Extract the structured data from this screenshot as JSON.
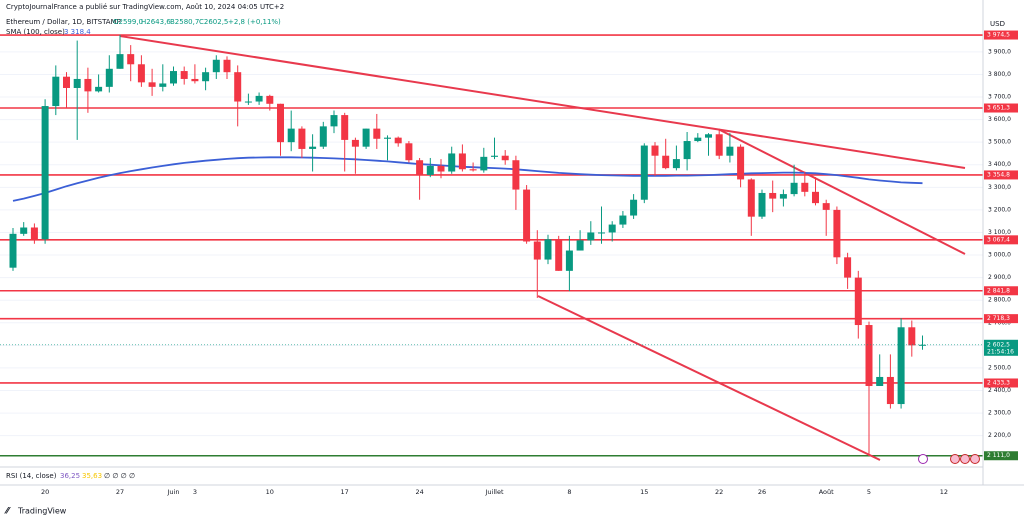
{
  "header": {
    "publisher": "CryptoJournalFrance a publié sur TradingView.com, Août 10, 2024 04:05 UTC+2",
    "symbol": "Ethereum / Dollar, 1D, BITSTAMP",
    "ohlc": [
      "O2599,0",
      "H2643,6",
      "B2580,7",
      "C2602,5",
      "+2,8 (+0,11%)"
    ],
    "currency": "USD",
    "rsi": {
      "name": "RSI (14, close)",
      "values": [
        "36,25",
        "35,63"
      ],
      "extra": "∅ ∅ ∅ ∅"
    },
    "brand": "TradingView"
  },
  "chart_data": {
    "type": "candlestick",
    "categories": [
      null,
      null,
      null,
      "20",
      null,
      null,
      null,
      null,
      null,
      null,
      "27",
      null,
      null,
      null,
      null,
      "Juin",
      null,
      "3",
      null,
      null,
      null,
      null,
      null,
      null,
      "10",
      null,
      null,
      null,
      null,
      null,
      null,
      "17",
      null,
      null,
      null,
      null,
      null,
      null,
      "24",
      null,
      null,
      null,
      null,
      null,
      null,
      "Juillet",
      null,
      null,
      null,
      null,
      null,
      null,
      "8",
      null,
      null,
      null,
      null,
      null,
      null,
      "15",
      null,
      null,
      null,
      null,
      null,
      null,
      "22",
      null,
      null,
      null,
      "26",
      null,
      null,
      null,
      null,
      null,
      "Août",
      null,
      null,
      null,
      "5",
      null,
      null,
      null,
      null,
      null,
      null,
      "12"
    ],
    "open": [
      2944,
      3094,
      3122,
      3070,
      3660,
      3790,
      3740,
      3780,
      3725,
      3745,
      3825,
      3890,
      3845,
      3765,
      3745,
      3760,
      3815,
      3780,
      3770,
      3810,
      3865,
      3810,
      3680,
      3680,
      3705,
      3670,
      3500,
      3560,
      3470,
      3480,
      3570,
      3620,
      3510,
      3480,
      3560,
      3515,
      3520,
      3495,
      3420,
      3355,
      3395,
      3370,
      3450,
      3380,
      3375,
      3435,
      3440,
      3420,
      3290,
      3060,
      2980,
      3070,
      2930,
      3020,
      3065,
      3100,
      3100,
      3135,
      3175,
      3245,
      3485,
      3440,
      3385,
      3425,
      3505,
      3520,
      3535,
      3440,
      3480,
      3335,
      3170,
      3275,
      3250,
      3270,
      3320,
      3280,
      3230,
      3200,
      2990,
      2900,
      2690,
      2420,
      2460,
      2340,
      2680,
      2599,
      null,
      null
    ],
    "high": [
      3120,
      3146,
      3140,
      3690,
      3840,
      3810,
      3950,
      3830,
      3800,
      3885,
      3975,
      3930,
      3885,
      3825,
      3845,
      3835,
      3835,
      3845,
      3830,
      3885,
      3880,
      3840,
      3715,
      3720,
      3710,
      3670,
      3640,
      3570,
      3535,
      3590,
      3640,
      3630,
      3520,
      3560,
      3625,
      3530,
      3525,
      3505,
      3430,
      3430,
      3425,
      3480,
      3490,
      3410,
      3475,
      3520,
      3465,
      3440,
      3310,
      3110,
      3090,
      3085,
      3085,
      3110,
      3150,
      3215,
      3150,
      3195,
      3270,
      3495,
      3500,
      3515,
      3485,
      3545,
      3540,
      3540,
      3560,
      3540,
      3490,
      3340,
      3290,
      3330,
      3290,
      3400,
      3370,
      3345,
      3245,
      3215,
      3010,
      2930,
      2705,
      2560,
      2560,
      2720,
      2710,
      2643.6,
      null,
      null
    ],
    "low": [
      2930,
      3085,
      3050,
      3050,
      3620,
      3650,
      3510,
      3630,
      3720,
      3720,
      3825,
      3770,
      3745,
      3705,
      3725,
      3750,
      3755,
      3760,
      3730,
      3780,
      3780,
      3570,
      3665,
      3665,
      3640,
      3440,
      3460,
      3430,
      3370,
      3470,
      3540,
      3370,
      3360,
      3470,
      3470,
      3420,
      3480,
      3410,
      3245,
      3345,
      3340,
      3360,
      3370,
      3370,
      3365,
      3425,
      3400,
      3200,
      3050,
      2810,
      2960,
      2930,
      2840,
      3020,
      3045,
      3050,
      3060,
      3120,
      3160,
      3230,
      3350,
      3380,
      3375,
      3375,
      3500,
      3440,
      3425,
      3410,
      3300,
      3085,
      3160,
      3190,
      3215,
      3260,
      3260,
      3220,
      3085,
      2960,
      2850,
      2630,
      2110,
      2420,
      2320,
      2320,
      2550,
      2580.7,
      null,
      null
    ],
    "close": [
      3094,
      3122,
      3070,
      3660,
      3790,
      3740,
      3780,
      3725,
      3745,
      3825,
      3890,
      3845,
      3765,
      3745,
      3760,
      3815,
      3780,
      3770,
      3810,
      3865,
      3810,
      3680,
      3680,
      3705,
      3670,
      3500,
      3560,
      3470,
      3480,
      3570,
      3620,
      3510,
      3480,
      3560,
      3515,
      3520,
      3495,
      3420,
      3355,
      3395,
      3370,
      3450,
      3380,
      3375,
      3435,
      3440,
      3420,
      3290,
      3060,
      2980,
      3070,
      2930,
      3020,
      3065,
      3100,
      3100,
      3135,
      3175,
      3245,
      3485,
      3440,
      3385,
      3425,
      3505,
      3520,
      3535,
      3440,
      3480,
      3335,
      3170,
      3275,
      3250,
      3270,
      3320,
      3280,
      3230,
      3200,
      2990,
      2900,
      2690,
      2420,
      2460,
      2340,
      2680,
      2600,
      2602.5,
      null,
      null
    ],
    "up_color": "#089981",
    "down_color": "#f23645",
    "sma": {
      "name": "SMA (100, close)",
      "color": "#3b5fd6",
      "last_label": "3 318,4",
      "values": [
        3240,
        3250,
        3262,
        3275,
        3290,
        3305,
        3318,
        3330,
        3342,
        3353,
        3363,
        3372,
        3380,
        3388,
        3395,
        3402,
        3408,
        3413,
        3418,
        3422,
        3426,
        3429,
        3431,
        3432,
        3433,
        3433,
        3433,
        3432,
        3431,
        3430,
        3428,
        3426,
        3424,
        3421,
        3418,
        3415,
        3411,
        3407,
        3403,
        3400,
        3397,
        3394,
        3391,
        3389,
        3387,
        3385,
        3383,
        3380,
        3376,
        3372,
        3368,
        3364,
        3361,
        3358,
        3356,
        3354,
        3353,
        3352,
        3351,
        3351,
        3351,
        3351,
        3352,
        3352,
        3353,
        3354,
        3356,
        3358,
        3360,
        3362,
        3363,
        3364,
        3365,
        3365,
        3364,
        3362,
        3358,
        3354,
        3348,
        3342,
        3335,
        3330,
        3326,
        3322,
        3320,
        3318.4,
        null,
        null
      ]
    },
    "levels": [
      {
        "value": 3974.5,
        "label": "3 974,5",
        "color": "#f23645"
      },
      {
        "value": 3651.3,
        "label": "3 651,3",
        "color": "#f23645"
      },
      {
        "value": 3354.8,
        "label": "3 354,8",
        "color": "#f23645"
      },
      {
        "value": 3067.4,
        "label": "3 067,4",
        "color": "#f23645"
      },
      {
        "value": 2841.8,
        "label": "2 841,8",
        "color": "#f23645"
      },
      {
        "value": 2718.3,
        "label": "2 718,3",
        "color": "#f23645"
      },
      {
        "value": 2433.3,
        "label": "2 433,3",
        "color": "#f23645"
      },
      {
        "value": 2111.0,
        "label": "2 111,0",
        "color": "#2e7d32"
      }
    ],
    "last": {
      "value": 2602.5,
      "label": "2 602,5",
      "countdown": "21:54:16",
      "color": "#089981"
    },
    "ylim": [
      2070,
      4050
    ],
    "yticks": [
      {
        "value": 2200,
        "label": "2 200,0"
      },
      {
        "value": 2300,
        "label": "2 300,0"
      },
      {
        "value": 2400,
        "label": "2 400,0"
      },
      {
        "value": 2500,
        "label": "2 500,0"
      },
      {
        "value": 2600,
        "label": "2 600,0"
      },
      {
        "value": 2700,
        "label": "2 700,0"
      },
      {
        "value": 2800,
        "label": "2 800,0"
      },
      {
        "value": 2900,
        "label": "2 900,0"
      },
      {
        "value": 3000,
        "label": "3 000,0"
      },
      {
        "value": 3100,
        "label": "3 100,0"
      },
      {
        "value": 3200,
        "label": "3 200,0"
      },
      {
        "value": 3300,
        "label": "3 300,0"
      },
      {
        "value": 3400,
        "label": "3 400,0"
      },
      {
        "value": 3500,
        "label": "3 500,0"
      },
      {
        "value": 3600,
        "label": "3 600,0"
      },
      {
        "value": 3700,
        "label": "3 700,0"
      },
      {
        "value": 3800,
        "label": "3 800,0"
      },
      {
        "value": 3900,
        "label": "3 900,0"
      }
    ],
    "grid": true
  }
}
